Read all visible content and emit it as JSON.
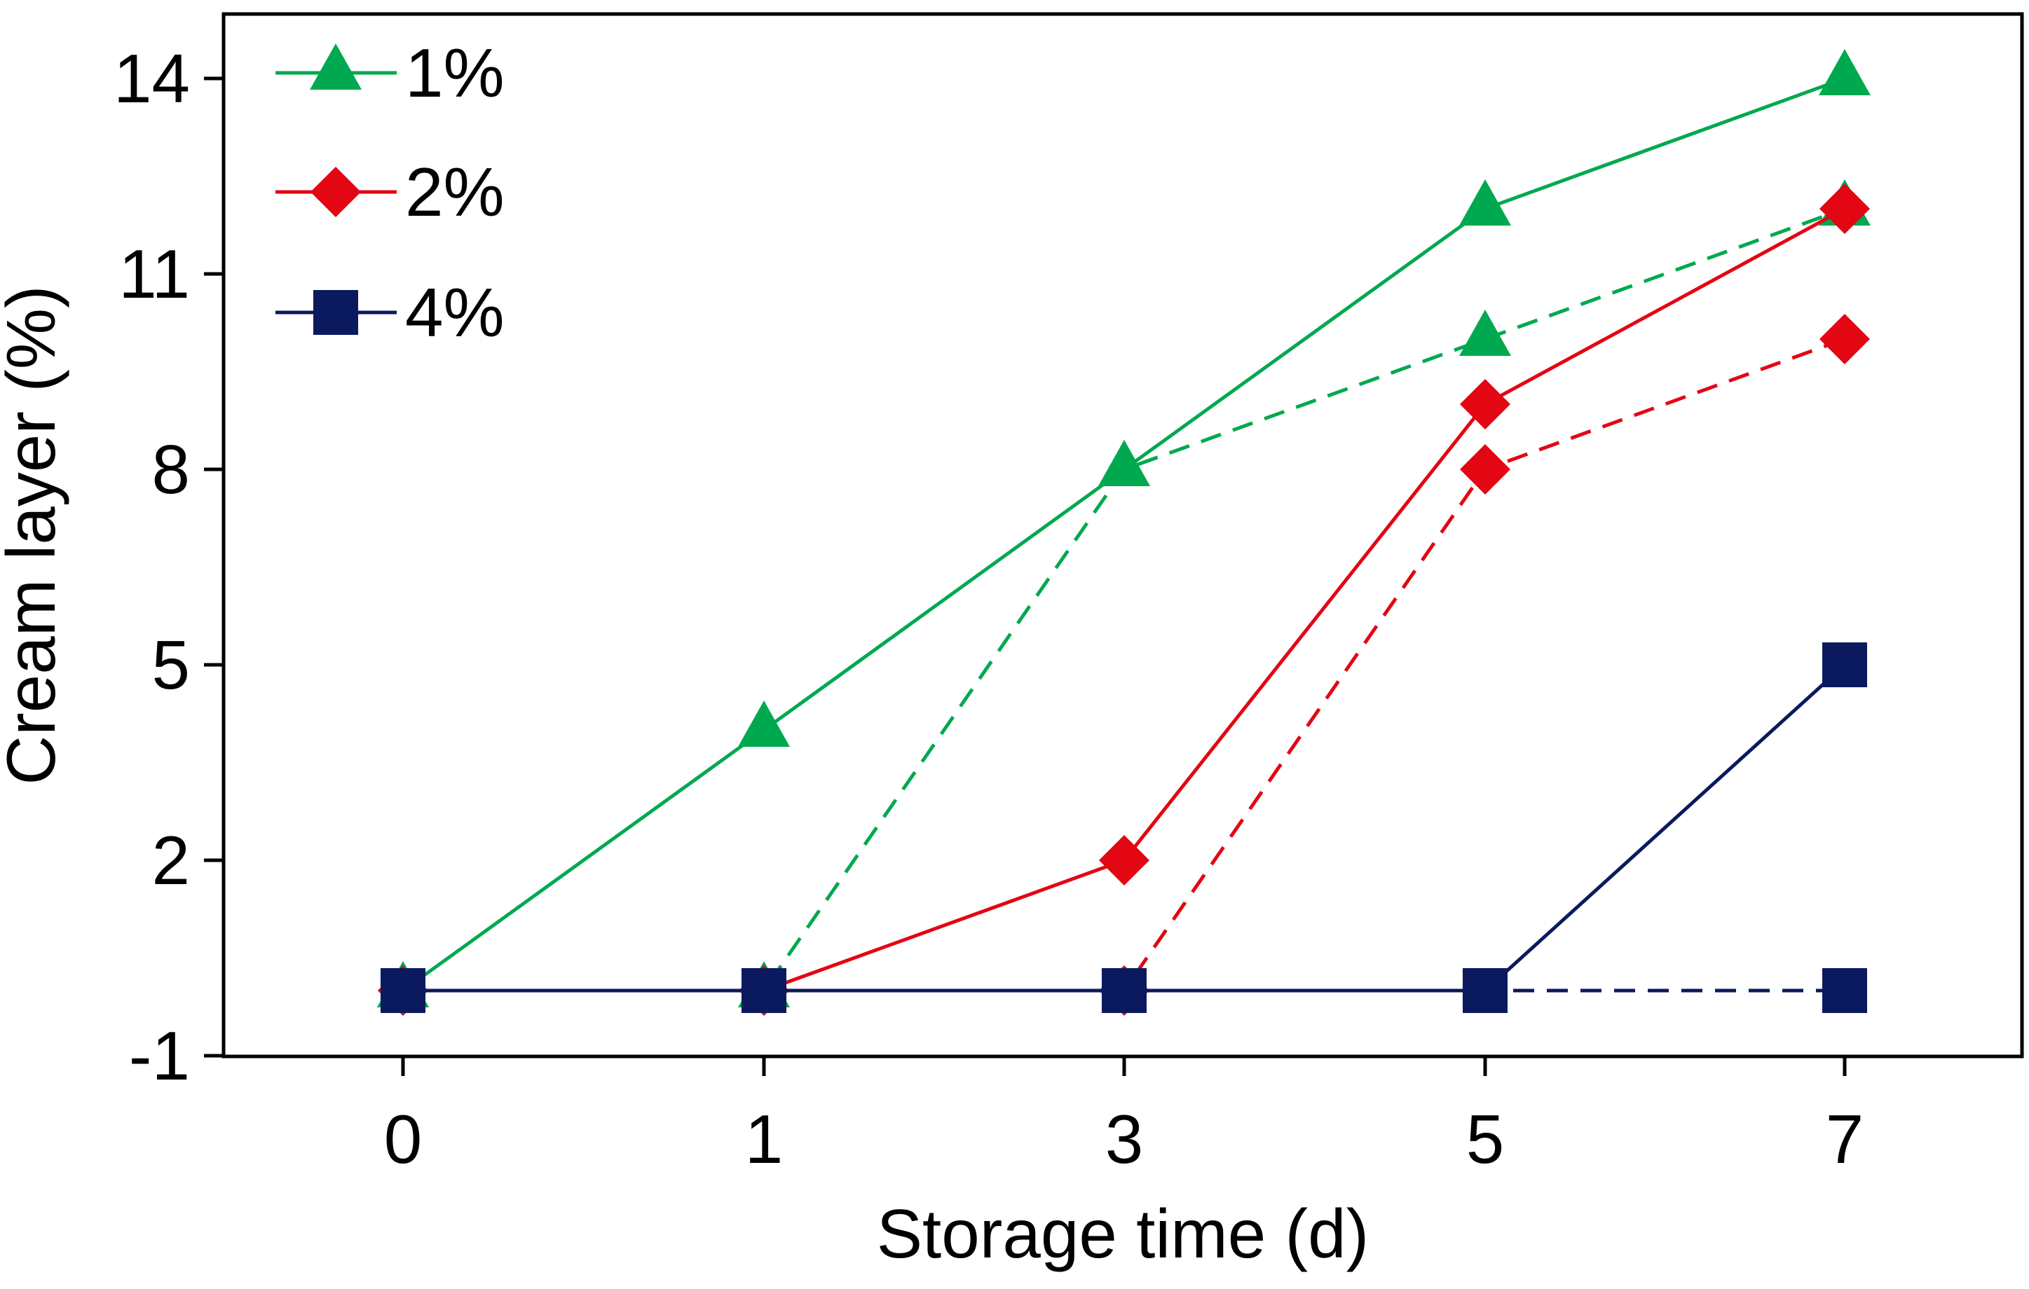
{
  "chart_data": {
    "type": "line",
    "title": "",
    "xlabel": "Storage time (d)",
    "ylabel": "Cream layer (%)",
    "categories": [
      "0",
      "1",
      "3",
      "5",
      "7"
    ],
    "yticks": [
      "14",
      "11",
      "8",
      "5",
      "2",
      "-1"
    ],
    "ylim": [
      -1,
      15
    ],
    "grid": false,
    "legend_position": "top-left",
    "series": [
      {
        "name": "1%",
        "color": "#00a94f",
        "marker": "triangle",
        "dash": "solid",
        "in_legend": true,
        "values": [
          0,
          4,
          8,
          12,
          14
        ]
      },
      {
        "name": "1%",
        "color": "#00a94f",
        "marker": "triangle",
        "dash": "dashed",
        "in_legend": false,
        "values": [
          0,
          0,
          8,
          10,
          12
        ]
      },
      {
        "name": "2%",
        "color": "#e30613",
        "marker": "diamond",
        "dash": "solid",
        "in_legend": true,
        "values": [
          0,
          0,
          2,
          9,
          12
        ]
      },
      {
        "name": "2%",
        "color": "#e30613",
        "marker": "diamond",
        "dash": "dashed",
        "in_legend": false,
        "values": [
          0,
          0,
          0,
          8,
          10
        ]
      },
      {
        "name": "4%",
        "color": "#0b1a5e",
        "marker": "square",
        "dash": "dashed",
        "in_legend": false,
        "values": [
          0,
          0,
          0,
          0,
          0
        ]
      },
      {
        "name": "4%",
        "color": "#0b1a5e",
        "marker": "square",
        "dash": "solid",
        "in_legend": true,
        "values": [
          0,
          0,
          0,
          0,
          5
        ]
      }
    ]
  }
}
